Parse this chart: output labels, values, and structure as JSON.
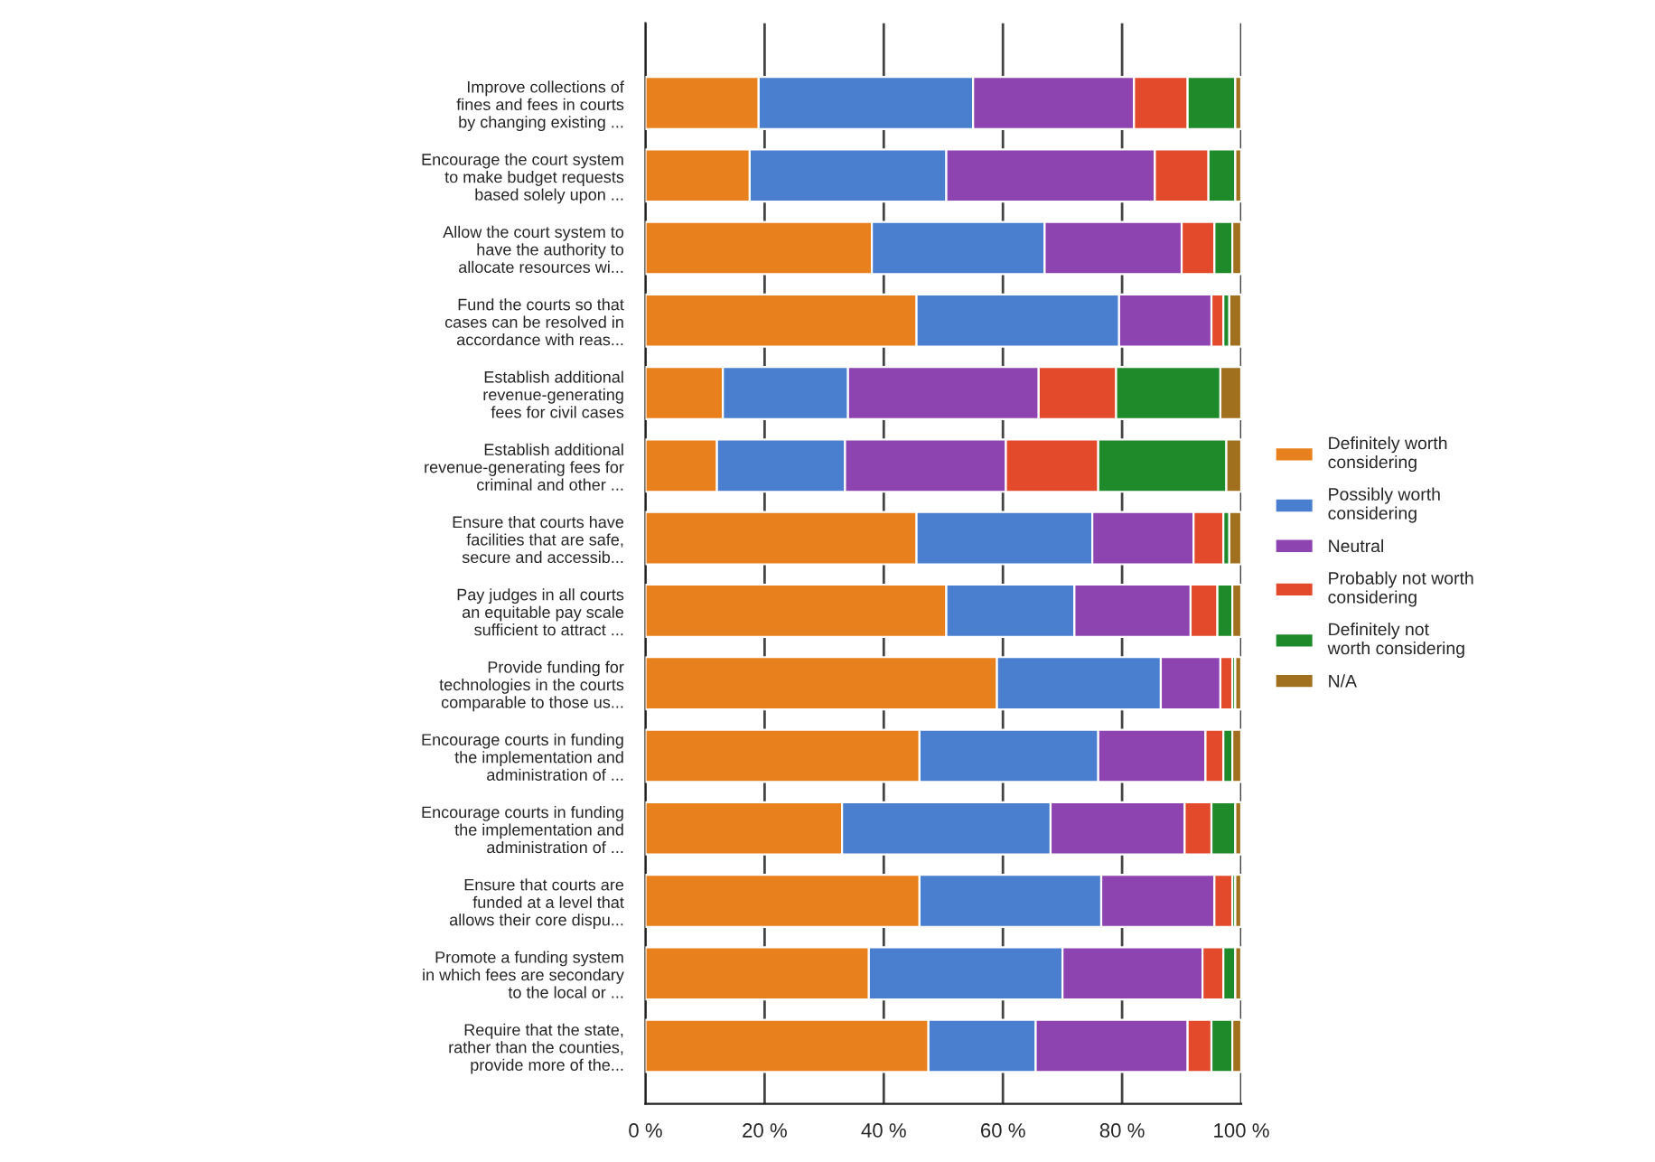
{
  "chart_data": {
    "type": "bar",
    "orientation": "horizontal",
    "stacked": true,
    "categories": [
      "Improve collections of\nfines and fees in courts\nby changing existing ...",
      "Encourage the court system\nto make budget requests\nbased solely upon ...",
      "Allow the court system to\nhave the authority to\nallocate resources wi...",
      "Fund the courts so that\ncases can be resolved in\naccordance with reas...",
      "Establish additional\nrevenue-generating\nfees for civil cases",
      "Establish additional\nrevenue-generating fees for\ncriminal and other ...",
      "Ensure that courts have\nfacilities that are safe,\nsecure and accessib...",
      "Pay judges in all courts\nan equitable pay scale\nsufficient to attract ...",
      "Provide funding for\ntechnologies in the courts\ncomparable to those us...",
      "Encourage courts in funding\nthe implementation and\nadministration of ...",
      "Encourage courts in funding\nthe implementation and\nadministration of ...",
      "Ensure that courts are\nfunded at a level that\nallows their core dispu...",
      "Promote a funding system\nin which fees are secondary\nto the local or ...",
      "Require that the state,\nrather than the counties,\nprovide more of the..."
    ],
    "series": [
      {
        "name": "Definitely worth\nconsidering",
        "color": "#e8801e",
        "values": [
          19,
          17.5,
          38,
          45.5,
          13,
          12,
          45.5,
          50.5,
          59,
          46,
          33,
          46,
          37.5,
          47.5
        ]
      },
      {
        "name": "Possibly worth\nconsidering",
        "color": "#4a7fd0",
        "values": [
          36,
          33,
          29,
          34,
          21,
          21.5,
          29.5,
          21.5,
          27.5,
          30,
          35,
          30.5,
          32.5,
          18
        ]
      },
      {
        "name": "Neutral",
        "color": "#8e44b0",
        "values": [
          27,
          35,
          23,
          15.5,
          32,
          27,
          17,
          19.5,
          10,
          18,
          22.5,
          19,
          23.5,
          25.5
        ]
      },
      {
        "name": "Probably not worth\nconsidering",
        "color": "#e34a2c",
        "values": [
          9,
          9,
          5.5,
          2,
          13,
          15.5,
          5,
          4.5,
          2,
          3,
          4.5,
          3,
          3.5,
          4
        ]
      },
      {
        "name": "Definitely not\nworth considering",
        "color": "#1f8a2a",
        "values": [
          8,
          4.5,
          3,
          1,
          17.5,
          21.5,
          1,
          2.5,
          0.5,
          1.5,
          4,
          0.5,
          2,
          3.5
        ]
      },
      {
        "name": "N/A",
        "color": "#a0701e",
        "values": [
          1,
          1,
          1.5,
          2,
          3.5,
          2.5,
          2,
          1.5,
          1,
          1.5,
          1,
          1,
          1,
          1.5
        ]
      }
    ],
    "xlim": [
      0,
      100
    ],
    "xticks": [
      {
        "value": 0,
        "label": "0 %"
      },
      {
        "value": 20,
        "label": "20 %"
      },
      {
        "value": 40,
        "label": "40 %"
      },
      {
        "value": 60,
        "label": "60 %"
      },
      {
        "value": 80,
        "label": "80 %"
      },
      {
        "value": 100,
        "label": "100 %"
      }
    ],
    "grid": "x",
    "legend": "right"
  }
}
